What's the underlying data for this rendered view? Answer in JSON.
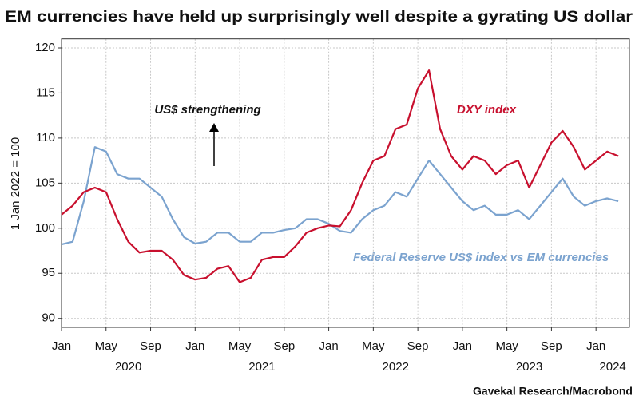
{
  "chart_data": {
    "type": "line",
    "title": "EM currencies have held up surprisingly well despite a gyrating US dollar",
    "y_label": "1 Jan 2022 = 100",
    "annotation": "US$ strengthening",
    "source": "Gavekal Research/Macrobond",
    "x": [
      "2020-01",
      "2020-02",
      "2020-03",
      "2020-04",
      "2020-05",
      "2020-06",
      "2020-07",
      "2020-08",
      "2020-09",
      "2020-10",
      "2020-11",
      "2020-12",
      "2021-01",
      "2021-02",
      "2021-03",
      "2021-04",
      "2021-05",
      "2021-06",
      "2021-07",
      "2021-08",
      "2021-09",
      "2021-10",
      "2021-11",
      "2021-12",
      "2022-01",
      "2022-02",
      "2022-03",
      "2022-04",
      "2022-05",
      "2022-06",
      "2022-07",
      "2022-08",
      "2022-09",
      "2022-10",
      "2022-11",
      "2022-12",
      "2023-01",
      "2023-02",
      "2023-03",
      "2023-04",
      "2023-05",
      "2023-06",
      "2023-07",
      "2023-08",
      "2023-09",
      "2023-10",
      "2023-11",
      "2023-12",
      "2024-01",
      "2024-02",
      "2024-03"
    ],
    "series": [
      {
        "name": "DXY index",
        "color": "#c8102e",
        "values": [
          101.5,
          102.5,
          104,
          104.5,
          104,
          101,
          98.5,
          97.3,
          97.5,
          97.5,
          96.5,
          94.8,
          94.3,
          94.5,
          95.5,
          95.8,
          94,
          94.5,
          96.5,
          96.8,
          96.8,
          98,
          99.5,
          100,
          100.3,
          100.2,
          102,
          105,
          107.5,
          108,
          111,
          111.5,
          115.5,
          117.5,
          111,
          108,
          106.5,
          108,
          107.5,
          106,
          107,
          107.5,
          104.5,
          107,
          109.5,
          110.8,
          109,
          106.5,
          107.5,
          108.5,
          108
        ]
      },
      {
        "name": "Federal Reserve US$ index vs EM currencies",
        "color": "#7ba3cf",
        "values": [
          98.2,
          98.5,
          103,
          109,
          108.5,
          106,
          105.5,
          105.5,
          104.5,
          103.5,
          101,
          99,
          98.3,
          98.5,
          99.5,
          99.5,
          98.5,
          98.5,
          99.5,
          99.5,
          99.8,
          100,
          101,
          101,
          100.5,
          99.7,
          99.5,
          101,
          102,
          102.5,
          104,
          103.5,
          105.5,
          107.5,
          106,
          104.5,
          103,
          102,
          102.5,
          101.5,
          101.5,
          102,
          101,
          102.5,
          104,
          105.5,
          103.5,
          102.5,
          103,
          103.3,
          103
        ]
      }
    ],
    "xlim": [
      "2020-01",
      "2024-04"
    ],
    "xticks": [
      {
        "value": "2020-01",
        "label": "Jan"
      },
      {
        "value": "2020-05",
        "label": "May"
      },
      {
        "value": "2020-09",
        "label": "Sep"
      },
      {
        "value": "2021-01",
        "label": "Jan"
      },
      {
        "value": "2021-05",
        "label": "May"
      },
      {
        "value": "2021-09",
        "label": "Sep"
      },
      {
        "value": "2022-01",
        "label": "Jan"
      },
      {
        "value": "2022-05",
        "label": "May"
      },
      {
        "value": "2022-09",
        "label": "Sep"
      },
      {
        "value": "2023-01",
        "label": "Jan"
      },
      {
        "value": "2023-05",
        "label": "May"
      },
      {
        "value": "2023-09",
        "label": "Sep"
      },
      {
        "value": "2024-01",
        "label": "Jan"
      }
    ],
    "years": [
      "2020",
      "2021",
      "2022",
      "2023",
      "2024"
    ],
    "ylim": [
      89,
      121
    ],
    "yticks": [
      90,
      95,
      100,
      105,
      110,
      115,
      120
    ],
    "grid": true
  }
}
